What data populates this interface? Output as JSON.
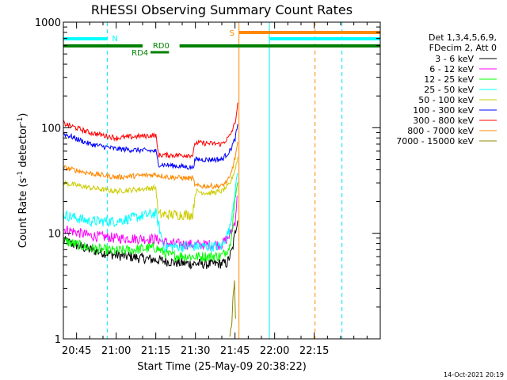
{
  "chart_data": {
    "type": "line",
    "title": "RHESSI Observing Summary Count Rates",
    "xlabel": "Start Time (25-May-09 20:38:22)",
    "ylabel_parts": [
      "Count Rate (s",
      "-1",
      " detector",
      "-1",
      ")"
    ],
    "y_scale": "log",
    "ylim": [
      1,
      1000
    ],
    "y_ticks": [
      {
        "value": 1,
        "label": "1"
      },
      {
        "value": 10,
        "label": "10"
      },
      {
        "value": 100,
        "label": "100"
      },
      {
        "value": 1000,
        "label": "1000"
      }
    ],
    "x_range_min": [
      40,
      160
    ],
    "x_ticks": [
      {
        "min": 45,
        "label": "20:45"
      },
      {
        "min": 60,
        "label": "21:00"
      },
      {
        "min": 75,
        "label": "21:15"
      },
      {
        "min": 90,
        "label": "21:30"
      },
      {
        "min": 105,
        "label": "21:45"
      },
      {
        "min": 120,
        "label": "22:00"
      },
      {
        "min": 135,
        "label": "22:15"
      }
    ],
    "legend": {
      "header": [
        "Det 1,3,4,5,6,9,",
        "FDecim 2, Att 0"
      ],
      "placement": "right-outside"
    },
    "series": [
      {
        "name": "3 - 6 keV",
        "color": "#000000",
        "points": [
          [
            40,
            8.5
          ],
          [
            50,
            7
          ],
          [
            60,
            6.2
          ],
          [
            75,
            5.6
          ],
          [
            85,
            5.2
          ],
          [
            95,
            5.1
          ],
          [
            102,
            5.2
          ],
          [
            104,
            7
          ],
          [
            106,
            14
          ]
        ]
      },
      {
        "name": "6 - 12 keV",
        "color": "#ff00ff",
        "points": [
          [
            40,
            11
          ],
          [
            50,
            9.5
          ],
          [
            60,
            9
          ],
          [
            75,
            8.8
          ],
          [
            80,
            8
          ],
          [
            90,
            7.8
          ],
          [
            100,
            7.8
          ],
          [
            103,
            9.5
          ],
          [
            105,
            13
          ],
          [
            106,
            24
          ]
        ]
      },
      {
        "name": "12 - 25 keV",
        "color": "#00ff00",
        "points": [
          [
            40,
            8.5
          ],
          [
            50,
            7.2
          ],
          [
            60,
            6.8
          ],
          [
            75,
            7.3
          ],
          [
            80,
            6.2
          ],
          [
            90,
            6
          ],
          [
            100,
            6.1
          ],
          [
            103,
            7.5
          ],
          [
            105,
            20
          ],
          [
            106,
            32
          ]
        ]
      },
      {
        "name": "25 - 50 keV",
        "color": "#00ffff",
        "points": [
          [
            40,
            15
          ],
          [
            50,
            13
          ],
          [
            60,
            13
          ],
          [
            75,
            15.5
          ],
          [
            78,
            7.5
          ],
          [
            90,
            7.5
          ],
          [
            100,
            7.5
          ],
          [
            103,
            11
          ],
          [
            105,
            25
          ],
          [
            106,
            38
          ]
        ]
      },
      {
        "name": "50 - 100 keV",
        "color": "#cccc00",
        "points": [
          [
            40,
            30
          ],
          [
            50,
            27
          ],
          [
            60,
            25
          ],
          [
            75,
            27
          ],
          [
            76,
            15
          ],
          [
            80,
            15
          ],
          [
            89,
            15
          ],
          [
            90,
            25
          ],
          [
            95,
            24
          ],
          [
            100,
            25
          ],
          [
            103,
            29
          ],
          [
            105,
            40
          ],
          [
            106,
            52
          ]
        ]
      },
      {
        "name": "100 - 300 keV",
        "color": "#0000ff",
        "points": [
          [
            40,
            88
          ],
          [
            50,
            70
          ],
          [
            60,
            63
          ],
          [
            75,
            60
          ],
          [
            76,
            45
          ],
          [
            89,
            42
          ],
          [
            90,
            50
          ],
          [
            100,
            50
          ],
          [
            103,
            60
          ],
          [
            105,
            78
          ],
          [
            106,
            105
          ]
        ]
      },
      {
        "name": "300 - 800 keV",
        "color": "#ff0000",
        "points": [
          [
            40,
            110
          ],
          [
            50,
            90
          ],
          [
            60,
            80
          ],
          [
            75,
            85
          ],
          [
            76,
            55
          ],
          [
            89,
            55
          ],
          [
            90,
            72
          ],
          [
            100,
            70
          ],
          [
            103,
            83
          ],
          [
            105,
            110
          ],
          [
            106,
            165
          ]
        ]
      },
      {
        "name": "800 - 7000 keV",
        "color": "#ff8800",
        "points": [
          [
            40,
            42
          ],
          [
            50,
            37
          ],
          [
            60,
            34
          ],
          [
            75,
            36
          ],
          [
            80,
            34
          ],
          [
            89,
            33
          ],
          [
            90,
            28
          ],
          [
            100,
            28
          ],
          [
            103,
            33
          ],
          [
            105,
            52
          ],
          [
            106,
            70
          ]
        ]
      },
      {
        "name": "7000 - 15000 keV",
        "color": "#888800",
        "points": [
          [
            103,
            1
          ],
          [
            103.6,
            1.2
          ],
          [
            104.2,
            2.6
          ],
          [
            104.8,
            3.2
          ],
          [
            105.2,
            1.5
          ]
        ]
      }
    ],
    "annotations": {
      "night_bars": [
        {
          "label": "N",
          "start": 40,
          "end": 56.6
        },
        {
          "label": "",
          "start": 118,
          "end": 160
        }
      ],
      "saa_bar": {
        "label": "S",
        "start": 106.5,
        "end": 160
      },
      "decim_bar": {
        "start": 40,
        "end": 160
      },
      "rd0_label": "RD0",
      "rd4_label": "RD4",
      "cyan_vlines_dashed": [
        56.6,
        145.5
      ],
      "cyan_vlines_solid": [
        40,
        118
      ],
      "orange_vlines_solid": [
        106.5
      ],
      "orange_vlines_dashed": [
        135.3
      ]
    }
  },
  "footer_date": "14-Oct-2021 20:19"
}
